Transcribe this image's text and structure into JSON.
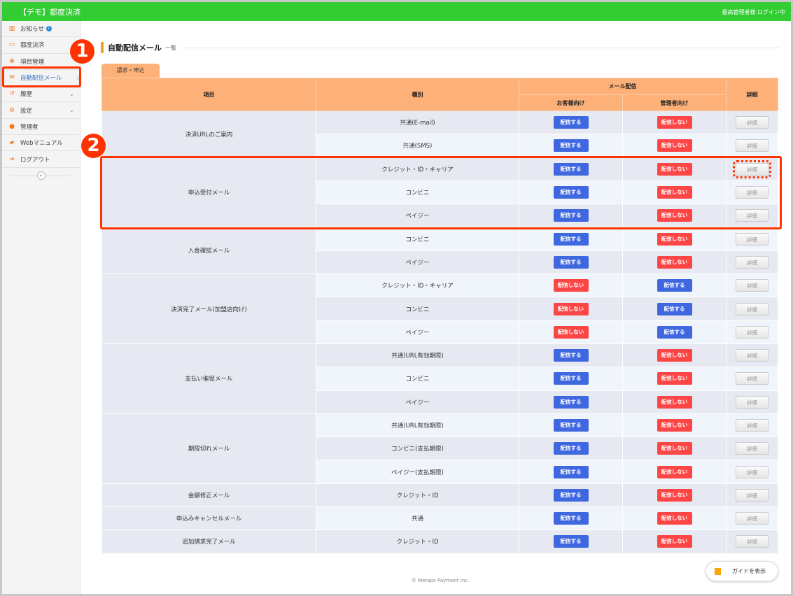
{
  "header": {
    "app_title": "【デモ】都度決済",
    "login_status": "最高管理者様 ログイン中"
  },
  "sidebar": {
    "items": [
      {
        "label": "お知らせ",
        "icon": "chart-icon",
        "info": "i"
      },
      {
        "label": "都度決済",
        "icon": "card-icon"
      },
      {
        "label": "項目管理",
        "icon": "items-icon"
      },
      {
        "label": "自動配信メール",
        "icon": "mail-icon",
        "active": true
      },
      {
        "label": "履歴",
        "icon": "history-icon",
        "chevron": "⌄"
      },
      {
        "label": "設定",
        "icon": "settings-icon",
        "chevron": "⌄"
      },
      {
        "label": "管理者",
        "icon": "user-icon"
      },
      {
        "label": "Webマニュアル",
        "icon": "book-icon"
      },
      {
        "label": "ログアウト",
        "icon": "logout-icon"
      }
    ],
    "collapse": "«"
  },
  "page": {
    "title": "自動配信メール",
    "subtitle": "一覧",
    "tab": "請求・申込"
  },
  "table": {
    "headers": {
      "item": "項目",
      "type": "種別",
      "mail": "メール配信",
      "customer": "お客様向け",
      "admin": "管理者向け",
      "detail": "詳細"
    },
    "labels": {
      "on": "配信する",
      "off": "配信しない",
      "detail": "詳細"
    },
    "colors": {
      "on": "#3f68e0",
      "off": "#fc4646",
      "header": "#fdb078",
      "topbar": "#33cc33"
    },
    "groups": [
      {
        "name": "決済URLのご案内",
        "rows": [
          {
            "type": "共通(E-mail)",
            "customer": "on",
            "admin": "off"
          },
          {
            "type": "共通(SMS)",
            "customer": "on",
            "admin": "off"
          }
        ]
      },
      {
        "name": "申込受付メール",
        "rows": [
          {
            "type": "クレジット・ID・キャリア",
            "customer": "on",
            "admin": "off"
          },
          {
            "type": "コンビニ",
            "customer": "on",
            "admin": "off"
          },
          {
            "type": "ペイジー",
            "customer": "on",
            "admin": "off"
          }
        ]
      },
      {
        "name": "入金確認メール",
        "rows": [
          {
            "type": "コンビニ",
            "customer": "on",
            "admin": "off"
          },
          {
            "type": "ペイジー",
            "customer": "on",
            "admin": "off"
          }
        ]
      },
      {
        "name": "決済完了メール(加盟店向け)",
        "rows": [
          {
            "type": "クレジット・ID・キャリア",
            "customer": "off",
            "admin": "on"
          },
          {
            "type": "コンビニ",
            "customer": "off",
            "admin": "on"
          },
          {
            "type": "ペイジー",
            "customer": "off",
            "admin": "on"
          }
        ]
      },
      {
        "name": "支払い催促メール",
        "rows": [
          {
            "type": "共通(URL有効期限)",
            "customer": "on",
            "admin": "off"
          },
          {
            "type": "コンビニ",
            "customer": "on",
            "admin": "off"
          },
          {
            "type": "ペイジー",
            "customer": "on",
            "admin": "off"
          }
        ]
      },
      {
        "name": "期限切れメール",
        "rows": [
          {
            "type": "共通(URL有効期限)",
            "customer": "on",
            "admin": "off"
          },
          {
            "type": "コンビニ(支払期限)",
            "customer": "on",
            "admin": "off"
          },
          {
            "type": "ペイジー(支払期限)",
            "customer": "on",
            "admin": "off"
          }
        ]
      },
      {
        "name": "金額修正メール",
        "rows": [
          {
            "type": "クレジット・ID",
            "customer": "on",
            "admin": "off"
          }
        ]
      },
      {
        "name": "申込みキャンセルメール",
        "rows": [
          {
            "type": "共通",
            "customer": "on",
            "admin": "off"
          }
        ]
      },
      {
        "name": "追加請求完了メール",
        "rows": [
          {
            "type": "クレジット・ID",
            "customer": "on",
            "admin": "off"
          }
        ]
      }
    ]
  },
  "annotations": {
    "mark1": "❶",
    "mark2": "❷"
  },
  "footer": {
    "copyright": "© Metaps Payment Inc.",
    "guide_button": "ガイドを表示"
  }
}
